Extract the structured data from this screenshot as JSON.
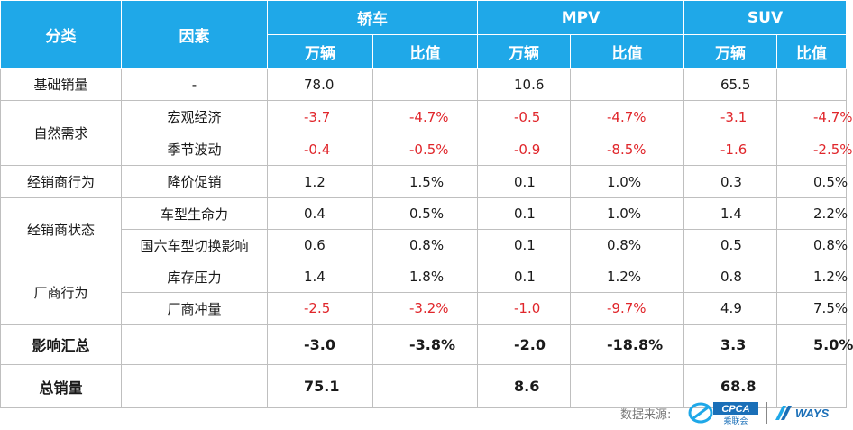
{
  "header": {
    "category": "分类",
    "factor": "因素",
    "groups": [
      "轿车",
      "MPV",
      "SUV"
    ],
    "sub_units": "万辆",
    "sub_ratio": "比值"
  },
  "rows": [
    {
      "category": "基础销量",
      "factor": "-",
      "values": [
        "78.0",
        "",
        "10.6",
        "",
        "65.5",
        ""
      ]
    },
    {
      "category": "自然需求",
      "factor": "宏观经济",
      "values": [
        "-3.7",
        "-4.7%",
        "-0.5",
        "-4.7%",
        "-3.1",
        "-4.7%"
      ]
    },
    {
      "category": "",
      "factor": "季节波动",
      "values": [
        "-0.4",
        "-0.5%",
        "-0.9",
        "-8.5%",
        "-1.6",
        "-2.5%"
      ]
    },
    {
      "category": "经销商行为",
      "factor": "降价促销",
      "values": [
        "1.2",
        "1.5%",
        "0.1",
        "1.0%",
        "0.3",
        "0.5%"
      ]
    },
    {
      "category": "经销商状态",
      "factor": "车型生命力",
      "values": [
        "0.4",
        "0.5%",
        "0.1",
        "1.0%",
        "1.4",
        "2.2%"
      ]
    },
    {
      "category": "",
      "factor": "国六车型切换影响",
      "values": [
        "0.6",
        "0.8%",
        "0.1",
        "0.8%",
        "0.5",
        "0.8%"
      ]
    },
    {
      "category": "厂商行为",
      "factor": "库存压力",
      "values": [
        "1.4",
        "1.8%",
        "0.1",
        "1.2%",
        "0.8",
        "1.2%"
      ]
    },
    {
      "category": "",
      "factor": "厂商冲量",
      "values": [
        "-2.5",
        "-3.2%",
        "-1.0",
        "-9.7%",
        "4.9",
        "7.5%"
      ]
    },
    {
      "category": "影响汇总",
      "factor": "",
      "values": [
        "-3.0",
        "-3.8%",
        "-2.0",
        "-18.8%",
        "3.3",
        "5.0%"
      ]
    },
    {
      "category": "总销量",
      "factor": "",
      "values": [
        "75.1",
        "",
        "8.6",
        "",
        "68.8",
        ""
      ]
    }
  ],
  "footer": {
    "source_label": "数据来源:",
    "cpca_logo_text": "CPCA",
    "cpca_cn_text": "乘联会",
    "ways_logo_text": "WAYS"
  },
  "colors": {
    "header_bg": "#1fa8e8",
    "negative": "#e0262b",
    "border": "#bfbfbf"
  }
}
